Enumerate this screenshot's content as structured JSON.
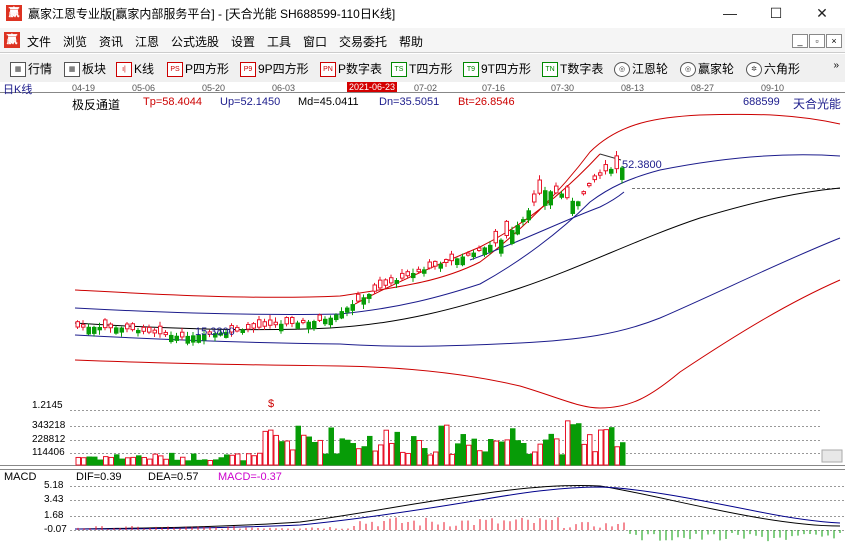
{
  "window": {
    "app_logo": "赢",
    "title": "赢家江恩专业版[赢家内部服务平台] - [天合光能  SH688599-110日K线]",
    "min_glyph": "—",
    "max_glyph": "☐",
    "close_glyph": "✕"
  },
  "menubar": {
    "logo": "赢",
    "items": [
      "文件",
      "浏览",
      "资讯",
      "江恩",
      "公式选股",
      "设置",
      "工具",
      "窗口",
      "交易委托",
      "帮助"
    ],
    "mdi_buttons": [
      "_",
      "▫",
      "×"
    ]
  },
  "toolbar": {
    "items": [
      {
        "label": "行情",
        "icon": "▦"
      },
      {
        "label": "板块",
        "icon": "▦"
      },
      {
        "label": "K线",
        "icon": "ı|"
      },
      {
        "label": "P四方形",
        "icon": "PS"
      },
      {
        "label": "9P四方形",
        "icon": "P9"
      },
      {
        "label": "P数字表",
        "icon": "PN"
      },
      {
        "label": "T四方形",
        "icon": "TS"
      },
      {
        "label": "9T四方形",
        "icon": "T9"
      },
      {
        "label": "T数字表",
        "icon": "TN"
      },
      {
        "label": "江恩轮",
        "icon": "◎"
      },
      {
        "label": "赢家轮",
        "icon": "◎"
      },
      {
        "label": "六角形",
        "icon": "✲"
      }
    ],
    "more": "»"
  },
  "chart": {
    "period_label": "日K线",
    "dates": [
      "04-19",
      "05-06",
      "05-20",
      "06-03",
      "2021-06-23",
      "07-02",
      "07-16",
      "07-30",
      "08-13",
      "08-27",
      "09-10"
    ],
    "highlight_date": "2021-06-23",
    "indicator_name": "极反通道",
    "indicator_values": [
      "Tp=58.4044",
      "Up=52.1450",
      "Md=45.0411",
      "Dn=35.5051",
      "Bt=26.8546"
    ],
    "stock_code": "688599",
    "stock_name": "天合光能",
    "high_price_label": "52.3800",
    "low_price_label": "15.3800",
    "vol_axis": [
      "1.2145",
      "343218",
      "228812",
      "114406"
    ],
    "vol_marker": "$",
    "macd_label": "MACD",
    "macd_values": [
      "DIF=0.39",
      "DEA=0.57",
      "MACD=-0.37"
    ],
    "macd_axis": [
      "5.18",
      "3.43",
      "1.68",
      "-0.07"
    ],
    "colors": {
      "up": "#e8152a",
      "down": "#079c07",
      "tp": "#cc0000",
      "up_line": "#1c1c8c",
      "md": "#000000",
      "dn": "#1c1c8c",
      "bt": "#cc0000",
      "highlight": "#d40000",
      "macd_text": "#cc00cc"
    }
  }
}
